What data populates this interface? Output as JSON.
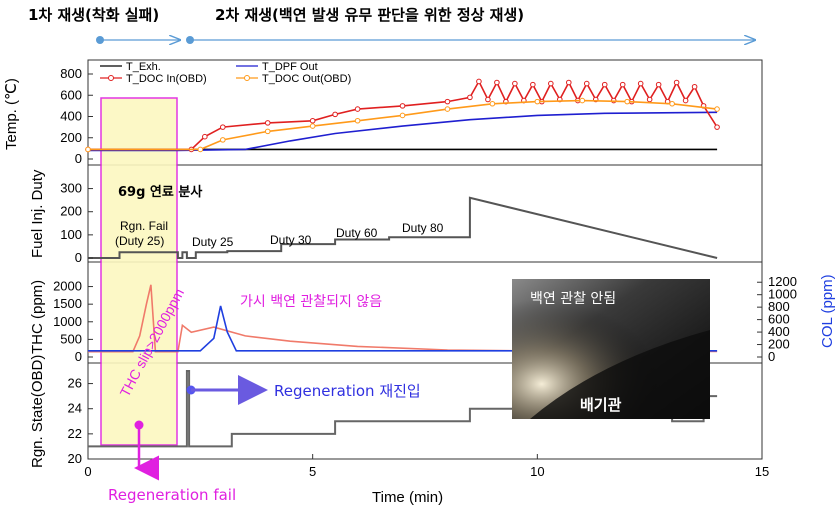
{
  "header": {
    "phase1": "1차 재생(착화 실패)",
    "phase2": "2차 재생(백연 발생 유무 판단을 위한 정상 재생)"
  },
  "legend": {
    "t_exh": "T_Exh.",
    "t_doc_in": "T_DOC In(OBD)",
    "t_dpf_out": "T_DPF Out",
    "t_doc_out": "T_DOC Out(OBD)"
  },
  "annotations": {
    "fuel_injection": "69g 연료 분사",
    "rgn_fail": "Rgn. Fail",
    "duty25_paren": "(Duty 25)",
    "duty25": "Duty 25",
    "duty30": "Duty 30",
    "duty60": "Duty 60",
    "duty80": "Duty 80",
    "no_white_smoke": "가시 백연 관찰되지 않음",
    "thc_slip": "THC slip>2000ppm",
    "regen_reentry": "Regeneration 재진입",
    "regen_fail": "Regeneration fail",
    "photo_caption": "백연 관찰 안됨",
    "photo_label": "배기관"
  },
  "colors": {
    "t_exh": "#000000",
    "t_doc_in": "#e02020",
    "t_dpf_out": "#1f1fd0",
    "t_doc_out": "#ff9a1a",
    "thc": "#f07a6a",
    "col": "#1f3fe0",
    "fuel": "#555555",
    "highlight_fill": "#fcf8c0",
    "highlight_border": "#e020e0",
    "header_arrow": "#5a9bd5",
    "magenta": "#e020e0",
    "blue_text": "#3030e0"
  },
  "chart_data": [
    {
      "type": "line",
      "panel": "temperature",
      "ylabel": "Temp. (℃)",
      "ylim": [
        0,
        800
      ],
      "yticks": [
        0,
        200,
        400,
        600,
        800
      ],
      "series": [
        {
          "name": "T_Exh.",
          "x": [
            0,
            14.0
          ],
          "y": [
            90,
            90
          ]
        },
        {
          "name": "T_DPF Out",
          "x": [
            0,
            2.0,
            3.5,
            4.5,
            5.5,
            7,
            8.5,
            10,
            11.5,
            14.0
          ],
          "y": [
            80,
            80,
            90,
            170,
            240,
            310,
            370,
            410,
            430,
            440
          ]
        },
        {
          "name": "T_DOC In(OBD)",
          "x": [
            0,
            2.3,
            2.6,
            3.0,
            4.0,
            5.0,
            5.5,
            6.0,
            7.0,
            8.0,
            8.5,
            8.7,
            8.9,
            9.1,
            9.3,
            9.5,
            9.7,
            9.9,
            10.1,
            10.3,
            10.5,
            10.7,
            10.9,
            11.1,
            11.3,
            11.5,
            11.7,
            11.9,
            12.1,
            12.3,
            12.5,
            12.7,
            12.9,
            13.1,
            13.3,
            13.5,
            13.7,
            14.0
          ],
          "y": [
            90,
            90,
            210,
            300,
            340,
            360,
            420,
            470,
            500,
            540,
            580,
            730,
            560,
            720,
            540,
            710,
            550,
            700,
            540,
            710,
            560,
            720,
            550,
            710,
            560,
            700,
            550,
            700,
            540,
            710,
            560,
            700,
            540,
            720,
            550,
            680,
            500,
            300
          ]
        },
        {
          "name": "T_DOC Out(OBD)",
          "x": [
            0,
            2.5,
            3.0,
            4.0,
            5.0,
            6.0,
            7.0,
            8.0,
            9.0,
            10.0,
            11.0,
            12.0,
            13.0,
            14.0
          ],
          "y": [
            90,
            90,
            180,
            260,
            310,
            360,
            410,
            470,
            520,
            540,
            550,
            540,
            520,
            470
          ]
        }
      ]
    },
    {
      "type": "line",
      "panel": "fuel_injection",
      "ylabel": "Fuel Inj. Duty",
      "ylim": [
        0,
        350
      ],
      "yticks": [
        0,
        100,
        200,
        300
      ],
      "series": [
        {
          "name": "Fuel Inj. Duty",
          "x": [
            0,
            0.7,
            0.7,
            2.0,
            2.0,
            2.1,
            2.1,
            2.2,
            2.2,
            2.4,
            2.4,
            3.1,
            3.1,
            4.3,
            4.3,
            5.5,
            5.5,
            6.7,
            6.7,
            8.5,
            8.5,
            14.0
          ],
          "y": [
            0,
            0,
            25,
            25,
            0,
            0,
            25,
            25,
            0,
            0,
            25,
            25,
            30,
            30,
            60,
            60,
            80,
            80,
            90,
            90,
            260,
            0
          ]
        }
      ]
    },
    {
      "type": "line",
      "panel": "emissions",
      "ylabel": "THC (ppm)",
      "ylabel_right": "COL (ppm)",
      "ylim": [
        0,
        2300
      ],
      "yticks": [
        0,
        500,
        1000,
        1500,
        2000
      ],
      "ylim_right": [
        0,
        1300
      ],
      "yticks_right": [
        0,
        200,
        400,
        600,
        800,
        1000,
        1200
      ],
      "series": [
        {
          "name": "THC",
          "x": [
            0,
            1.0,
            1.15,
            1.3,
            1.4,
            1.5,
            2.0,
            2.1,
            2.3,
            2.8,
            3.5,
            4.5,
            6.0,
            8.0,
            10.0,
            14.0
          ],
          "y": [
            150,
            150,
            600,
            1500,
            2050,
            150,
            150,
            900,
            700,
            850,
            600,
            450,
            300,
            200,
            170,
            160
          ]
        },
        {
          "name": "COL",
          "x": [
            0,
            2.5,
            2.8,
            2.95,
            3.1,
            3.3,
            14.0
          ],
          "y": [
            100,
            100,
            300,
            820,
            400,
            100,
            100
          ]
        }
      ]
    },
    {
      "type": "line",
      "panel": "regeneration_state",
      "ylabel": "Rgn. State(OBD)",
      "xlabel": "Time (min)",
      "ylim": [
        20,
        27
      ],
      "yticks": [
        20,
        22,
        24,
        26
      ],
      "xlim": [
        0,
        15
      ],
      "xticks": [
        0,
        5,
        10,
        15
      ],
      "series": [
        {
          "name": "Rgn. State",
          "x": [
            0,
            2.2,
            2.2,
            2.25,
            2.25,
            3.2,
            3.2,
            5.5,
            5.5,
            8.5,
            8.5,
            13.0,
            13.0,
            13.7,
            13.7,
            14.0
          ],
          "y": [
            21,
            21,
            27,
            27,
            21,
            21,
            22,
            22,
            23,
            23,
            24,
            24,
            23,
            23,
            25,
            25
          ]
        }
      ]
    }
  ]
}
